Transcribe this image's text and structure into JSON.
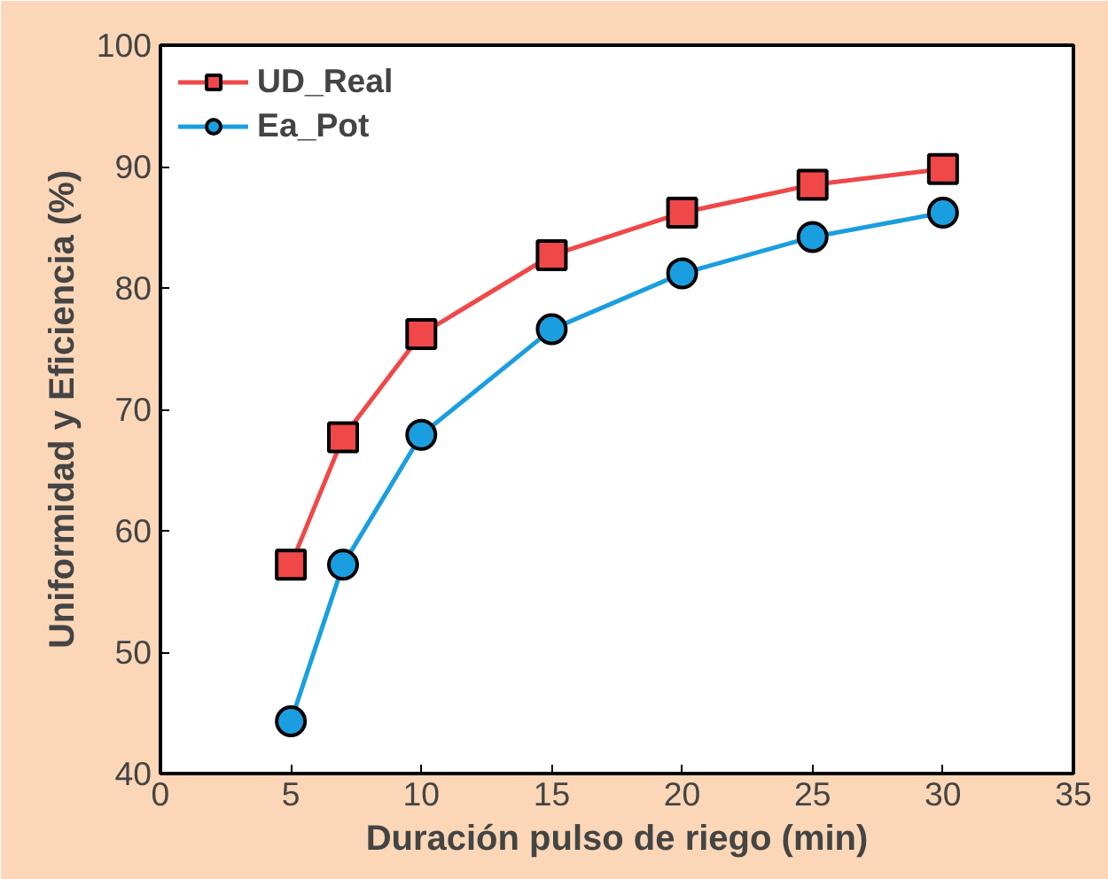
{
  "chart_data": {
    "type": "line",
    "xlabel": "Duración pulso de riego (min)",
    "ylabel": "Uniformidad y Eficiencia (%)",
    "x": [
      5,
      7,
      10,
      15,
      20,
      25,
      30
    ],
    "series": [
      {
        "name": "UD_Real",
        "color": "#f04848",
        "marker": "square",
        "values": [
          57.2,
          67.7,
          76.2,
          82.7,
          86.2,
          88.5,
          89.8
        ]
      },
      {
        "name": "Ea_Pot",
        "color": "#1a9ee0",
        "marker": "circle",
        "values": [
          44.3,
          57.2,
          67.9,
          76.6,
          81.2,
          84.2,
          86.2
        ]
      }
    ],
    "xlim": [
      0,
      35
    ],
    "xticks": [
      0,
      5,
      10,
      15,
      20,
      25,
      30,
      35
    ],
    "ylim": [
      40,
      100
    ],
    "yticks": [
      40,
      50,
      60,
      70,
      80,
      90,
      100
    ],
    "grid": false,
    "legend": "top left",
    "line_style": "solid"
  }
}
